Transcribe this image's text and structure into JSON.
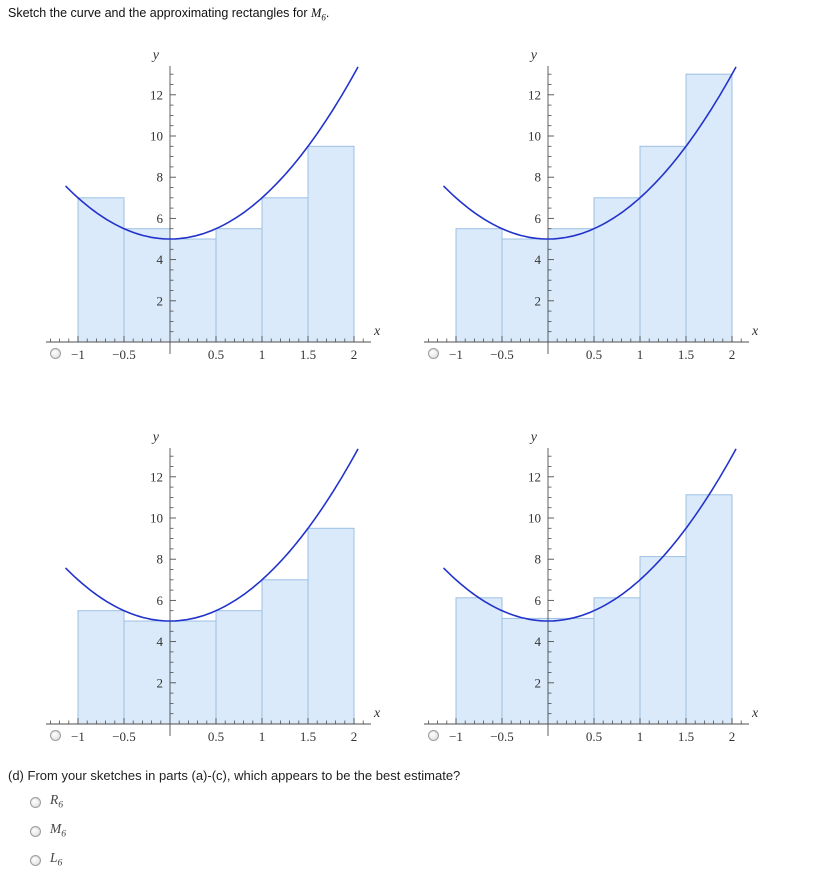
{
  "title": {
    "prefix": "Sketch the curve and the approximating rectangles for ",
    "math": "M",
    "sub": "6",
    "suffix": "."
  },
  "colors": {
    "curve": "#2233cc",
    "bar_fill": "#dbeafa",
    "bar_stroke": "#9cc0e4",
    "axis": "#4f4f4f",
    "tick_label": "#333333"
  },
  "chart_data": [
    {
      "type": "bar",
      "xlabel": "x",
      "ylabel": "y",
      "x_tick_values": [
        -1,
        -0.5,
        0.5,
        1,
        1.5,
        2
      ],
      "x_tick_labels": [
        "−1",
        "−0.5",
        "0.5",
        "1",
        "1.5",
        "2"
      ],
      "y_tick_values": [
        2,
        4,
        6,
        8,
        10,
        12
      ],
      "y_tick_labels": [
        "2",
        "4",
        "6",
        "8",
        "10",
        "12"
      ],
      "xlim": [
        -1.35,
        2.18
      ],
      "ylim": [
        0,
        13.4
      ],
      "curve": {
        "a": 2,
        "b": 0,
        "c": 5,
        "x_start": -1.13,
        "x_end": 2.04
      },
      "bars": {
        "x_start": -1,
        "width": 0.5,
        "heights": [
          7,
          5.5,
          5,
          5.5,
          7,
          9.5
        ]
      },
      "radio_selected": false
    },
    {
      "type": "bar",
      "xlabel": "x",
      "ylabel": "y",
      "x_tick_values": [
        -1,
        -0.5,
        0.5,
        1,
        1.5,
        2
      ],
      "x_tick_labels": [
        "−1",
        "−0.5",
        "0.5",
        "1",
        "1.5",
        "2"
      ],
      "y_tick_values": [
        2,
        4,
        6,
        8,
        10,
        12
      ],
      "y_tick_labels": [
        "2",
        "4",
        "6",
        "8",
        "10",
        "12"
      ],
      "xlim": [
        -1.35,
        2.18
      ],
      "ylim": [
        0,
        13.4
      ],
      "curve": {
        "a": 2,
        "b": 0,
        "c": 5,
        "x_start": -1.13,
        "x_end": 2.04
      },
      "bars": {
        "x_start": -1,
        "width": 0.5,
        "heights": [
          5.5,
          5,
          5.5,
          7,
          9.5,
          13
        ]
      },
      "radio_selected": false
    },
    {
      "type": "bar",
      "xlabel": "x",
      "ylabel": "y",
      "x_tick_values": [
        -1,
        -0.5,
        0.5,
        1,
        1.5,
        2
      ],
      "x_tick_labels": [
        "−1",
        "−0.5",
        "0.5",
        "1",
        "1.5",
        "2"
      ],
      "y_tick_values": [
        2,
        4,
        6,
        8,
        10,
        12
      ],
      "y_tick_labels": [
        "2",
        "4",
        "6",
        "8",
        "10",
        "12"
      ],
      "xlim": [
        -1.35,
        2.18
      ],
      "ylim": [
        0,
        13.4
      ],
      "curve": {
        "a": 2,
        "b": 0,
        "c": 5,
        "x_start": -1.13,
        "x_end": 2.04
      },
      "bars": {
        "x_start": -1,
        "width": 0.5,
        "heights": [
          5.5,
          5,
          5,
          5.5,
          7,
          9.5
        ]
      },
      "radio_selected": false
    },
    {
      "type": "bar",
      "xlabel": "x",
      "ylabel": "y",
      "x_tick_values": [
        -1,
        -0.5,
        0.5,
        1,
        1.5,
        2
      ],
      "x_tick_labels": [
        "−1",
        "−0.5",
        "0.5",
        "1",
        "1.5",
        "2"
      ],
      "y_tick_values": [
        2,
        4,
        6,
        8,
        10,
        12
      ],
      "y_tick_labels": [
        "2",
        "4",
        "6",
        "8",
        "10",
        "12"
      ],
      "xlim": [
        -1.35,
        2.18
      ],
      "ylim": [
        0,
        13.4
      ],
      "curve": {
        "a": 2,
        "b": 0,
        "c": 5,
        "x_start": -1.13,
        "x_end": 2.04
      },
      "bars": {
        "x_start": -1,
        "width": 0.5,
        "heights": [
          6.125,
          5.125,
          5.125,
          6.125,
          8.125,
          11.125
        ]
      },
      "radio_selected": false
    }
  ],
  "question": {
    "text": "(d) From your sketches in parts (a)-(c), which appears to be the best estimate?",
    "options": [
      {
        "letter": "R",
        "sub": "6",
        "selected": false
      },
      {
        "letter": "M",
        "sub": "6",
        "selected": false
      },
      {
        "letter": "L",
        "sub": "6",
        "selected": false
      }
    ]
  }
}
